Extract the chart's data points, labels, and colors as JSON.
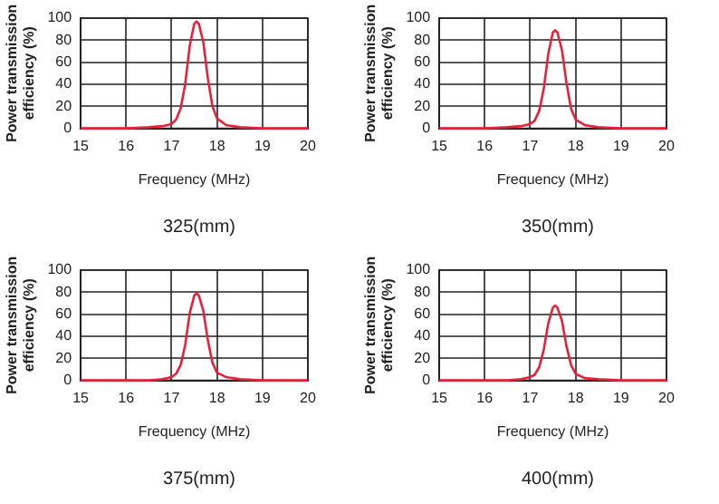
{
  "chart_data": [
    {
      "type": "line",
      "xlabel": "Frequency (MHz)",
      "ylabel": "Power transmission efficiency (%)",
      "annotations": [
        "325(mm)"
      ],
      "xlim": [
        15,
        20
      ],
      "ylim": [
        0,
        100
      ],
      "xticks": [
        15,
        16,
        17,
        18,
        19,
        20
      ],
      "yticks": [
        0,
        20,
        40,
        60,
        80,
        100
      ],
      "grid": true,
      "color": "#e8203a",
      "x": [
        15,
        15.5,
        16,
        16.5,
        16.8,
        17,
        17.1,
        17.2,
        17.3,
        17.4,
        17.5,
        17.55,
        17.6,
        17.7,
        17.8,
        17.9,
        18,
        18.2,
        18.5,
        19,
        20
      ],
      "values": [
        0,
        0,
        0,
        1,
        2,
        4,
        8,
        18,
        40,
        75,
        95,
        97,
        95,
        78,
        45,
        20,
        9,
        3,
        1,
        0,
        0
      ]
    },
    {
      "type": "line",
      "xlabel": "Frequency (MHz)",
      "ylabel": "Power transmission efficiency (%)",
      "annotations": [
        "350(mm)"
      ],
      "xlim": [
        15,
        20
      ],
      "ylim": [
        0,
        100
      ],
      "xticks": [
        15,
        16,
        17,
        18,
        19,
        20
      ],
      "yticks": [
        0,
        20,
        40,
        60,
        80,
        100
      ],
      "grid": true,
      "color": "#e8203a",
      "x": [
        15,
        15.5,
        16,
        16.5,
        16.8,
        17,
        17.1,
        17.2,
        17.3,
        17.4,
        17.5,
        17.55,
        17.6,
        17.7,
        17.8,
        17.9,
        18,
        18.2,
        18.5,
        19,
        20
      ],
      "values": [
        0,
        0,
        0,
        1,
        2,
        4,
        7,
        16,
        36,
        68,
        87,
        89,
        87,
        71,
        41,
        18,
        8,
        3,
        1,
        0,
        0
      ]
    },
    {
      "type": "line",
      "xlabel": "Frequency (MHz)",
      "ylabel": "Power transmission efficiency (%)",
      "annotations": [
        "375(mm)"
      ],
      "xlim": [
        15,
        20
      ],
      "ylim": [
        0,
        100
      ],
      "xticks": [
        15,
        16,
        17,
        18,
        19,
        20
      ],
      "yticks": [
        0,
        20,
        40,
        60,
        80,
        100
      ],
      "grid": true,
      "color": "#e8203a",
      "x": [
        15,
        15.5,
        16,
        16.5,
        16.8,
        17,
        17.1,
        17.2,
        17.3,
        17.4,
        17.5,
        17.55,
        17.6,
        17.7,
        17.8,
        17.9,
        18,
        18.2,
        18.5,
        19,
        20
      ],
      "values": [
        0,
        0,
        0,
        0,
        1,
        3,
        6,
        14,
        32,
        61,
        77,
        79,
        77,
        63,
        36,
        16,
        7,
        3,
        1,
        0,
        0
      ]
    },
    {
      "type": "line",
      "xlabel": "Frequency (MHz)",
      "ylabel": "Power transmission efficiency (%)",
      "annotations": [
        "400(mm)"
      ],
      "xlim": [
        15,
        20
      ],
      "ylim": [
        0,
        100
      ],
      "xticks": [
        15,
        16,
        17,
        18,
        19,
        20
      ],
      "yticks": [
        0,
        20,
        40,
        60,
        80,
        100
      ],
      "grid": true,
      "color": "#e8203a",
      "x": [
        15,
        15.5,
        16,
        16.5,
        16.8,
        17,
        17.1,
        17.2,
        17.3,
        17.4,
        17.5,
        17.55,
        17.6,
        17.7,
        17.8,
        17.9,
        18,
        18.2,
        18.5,
        19,
        20
      ],
      "values": [
        0,
        0,
        0,
        0,
        1,
        3,
        5,
        12,
        28,
        52,
        66,
        68,
        66,
        54,
        31,
        14,
        6,
        2,
        1,
        0,
        0
      ]
    }
  ]
}
